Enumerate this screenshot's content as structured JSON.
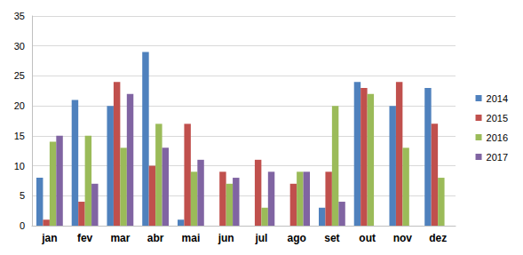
{
  "chart_data": {
    "type": "bar",
    "categories": [
      "jan",
      "fev",
      "mar",
      "abr",
      "mai",
      "jun",
      "jul",
      "ago",
      "set",
      "out",
      "nov",
      "dez"
    ],
    "series": [
      {
        "name": "2014",
        "color": "#4f81bd",
        "values": [
          8,
          21,
          20,
          29,
          1,
          0,
          0,
          0,
          3,
          24,
          20,
          23
        ]
      },
      {
        "name": "2015",
        "color": "#c0504d",
        "values": [
          1,
          4,
          24,
          10,
          17,
          9,
          11,
          7,
          9,
          23,
          24,
          17
        ]
      },
      {
        "name": "2016",
        "color": "#9bbb59",
        "values": [
          14,
          15,
          13,
          17,
          9,
          7,
          3,
          9,
          20,
          22,
          13,
          8
        ]
      },
      {
        "name": "2017",
        "color": "#8064a2",
        "values": [
          15,
          7,
          22,
          13,
          11,
          8,
          9,
          9,
          4,
          null,
          null,
          null
        ]
      }
    ],
    "ylim": [
      0,
      35
    ],
    "yticks": [
      0,
      5,
      10,
      15,
      20,
      25,
      30,
      35
    ],
    "grid": true,
    "legend": "right"
  }
}
